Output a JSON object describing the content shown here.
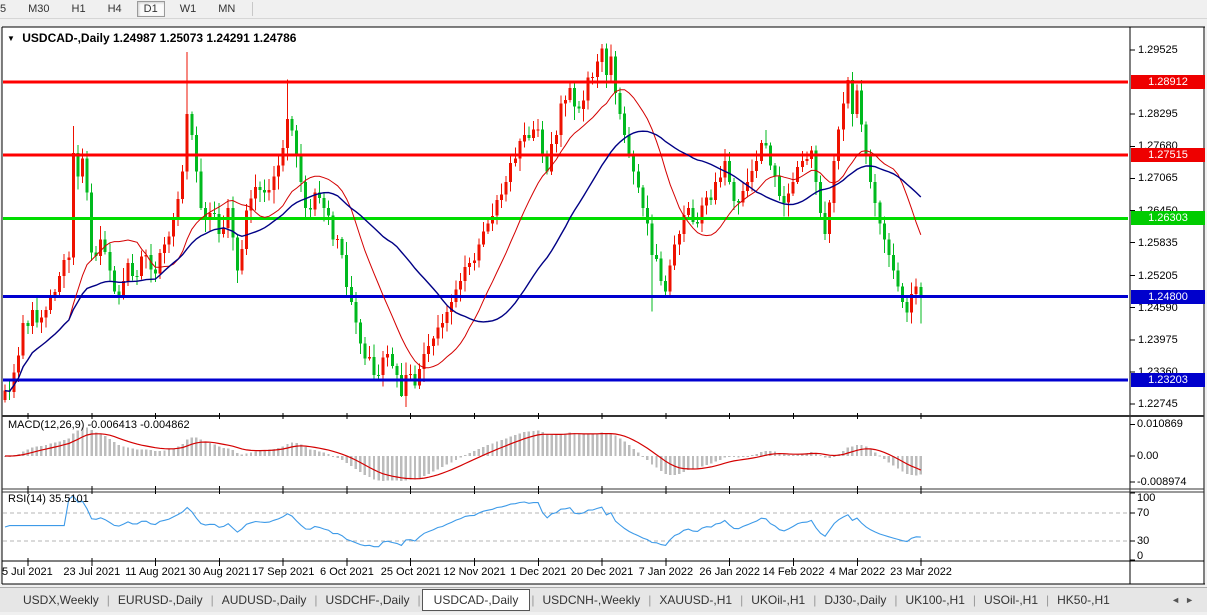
{
  "toolbar": {
    "timeframes": [
      {
        "label": "5",
        "partial": true,
        "active": false
      },
      {
        "label": "M30",
        "active": false
      },
      {
        "label": "H1",
        "active": false
      },
      {
        "label": "H4",
        "active": false
      },
      {
        "label": "D1",
        "active": true
      },
      {
        "label": "W1",
        "active": false
      },
      {
        "label": "MN",
        "active": false
      }
    ]
  },
  "chart": {
    "title_arrow": "▼",
    "symbol_title": "USDCAD-,Daily",
    "ohlc_text": "1.24987 1.25073 1.24291 1.24786"
  },
  "macd": {
    "label": "MACD(12,26,9) -0.006413 -0.004862"
  },
  "rsi": {
    "label": "RSI(14) 35.5101"
  },
  "tabs": {
    "items": [
      {
        "label": "USDX,Weekly",
        "active": false
      },
      {
        "label": "EURUSD-,Daily",
        "active": false
      },
      {
        "label": "AUDUSD-,Daily",
        "active": false
      },
      {
        "label": "USDCHF-,Daily",
        "active": false
      },
      {
        "label": "USDCAD-,Daily",
        "active": true
      },
      {
        "label": "USDCNH-,Weekly",
        "active": false
      },
      {
        "label": "XAUUSD-,H1",
        "active": false
      },
      {
        "label": "UKOil-,H1",
        "active": false
      },
      {
        "label": "DJ30-,Daily",
        "active": false
      },
      {
        "label": "UK100-,H1",
        "active": false
      },
      {
        "label": "USOil-,H1",
        "active": false
      },
      {
        "label": "HK50-,H1",
        "active": false
      }
    ],
    "scroll_left": "◄",
    "scroll_right": "►"
  },
  "chart_data": {
    "type": "candlestick",
    "symbol": "USDCAD-",
    "timeframe": "Daily",
    "current_ohlc": {
      "open": 1.24987,
      "high": 1.25073,
      "low": 1.24291,
      "close": 1.24786
    },
    "colors": {
      "bull": "#ee1100",
      "bear": "#00b91e",
      "ma_fast": "#d40000",
      "ma_slow": "#000085",
      "macd_hist": "#bcbcbc",
      "macd_signal": "#d40000",
      "rsi_line": "#3d9ae8",
      "rsi_levels": "#b5b5b5",
      "hline_red": "#ff0000",
      "hline_green": "#00dd00",
      "hline_blue": "#0000d0"
    },
    "price_axis_ticks": [
      "1.29525",
      "1.28295",
      "1.27680",
      "1.27065",
      "1.26450",
      "1.25835",
      "1.25205",
      "1.24590",
      "1.23975",
      "1.23360",
      "1.22745"
    ],
    "hlines": [
      {
        "price": 1.28912,
        "label": "1.28912",
        "color": "#ff0000",
        "badge": "#ee0000"
      },
      {
        "price": 1.27515,
        "label": "1.27515",
        "color": "#ff0000",
        "badge": "#ee0000"
      },
      {
        "price": 1.26303,
        "label": "1.26303",
        "color": "#00dd00",
        "badge": "#00cc00"
      },
      {
        "price": 1.248,
        "label": "1.24800",
        "color": "#0000d0",
        "badge": "#0000cc"
      },
      {
        "price": 1.23203,
        "label": "1.23203",
        "color": "#0000d0",
        "badge": "#0000cc"
      }
    ],
    "x_axis": {
      "labels": [
        "5 Jul 2021",
        "23 Jul 2021",
        "11 Aug 2021",
        "30 Aug 2021",
        "17 Sep 2021",
        "6 Oct 2021",
        "25 Oct 2021",
        "12 Nov 2021",
        "1 Dec 2021",
        "20 Dec 2021",
        "7 Jan 2022",
        "26 Jan 2022",
        "14 Feb 2022",
        "4 Mar 2022",
        "23 Mar 2022"
      ],
      "candles_per_tick": 14,
      "first_tick_candle": 5
    },
    "candles": {
      "count": 202,
      "close_anchors": [
        [
          0,
          1.23
        ],
        [
          2,
          1.2335
        ],
        [
          4,
          1.243
        ],
        [
          6,
          1.2455
        ],
        [
          8,
          1.244
        ],
        [
          10,
          1.248
        ],
        [
          12,
          1.252
        ],
        [
          14,
          1.2555
        ],
        [
          15,
          1.2755
        ],
        [
          16,
          1.271
        ],
        [
          17,
          1.2745
        ],
        [
          18,
          1.268
        ],
        [
          19,
          1.2565
        ],
        [
          21,
          1.259
        ],
        [
          23,
          1.253
        ],
        [
          25,
          1.248
        ],
        [
          27,
          1.2545
        ],
        [
          29,
          1.252
        ],
        [
          31,
          1.256
        ],
        [
          33,
          1.2525
        ],
        [
          35,
          1.258
        ],
        [
          37,
          1.263
        ],
        [
          39,
          1.272
        ],
        [
          40,
          1.283
        ],
        [
          41,
          1.279
        ],
        [
          43,
          1.265
        ],
        [
          45,
          1.264
        ],
        [
          47,
          1.26
        ],
        [
          49,
          1.265
        ],
        [
          51,
          1.253
        ],
        [
          53,
          1.2645
        ],
        [
          55,
          1.269
        ],
        [
          57,
          1.268
        ],
        [
          59,
          1.271
        ],
        [
          61,
          1.2765
        ],
        [
          62,
          1.282
        ],
        [
          64,
          1.275
        ],
        [
          66,
          1.265
        ],
        [
          68,
          1.268
        ],
        [
          70,
          1.265
        ],
        [
          72,
          1.259
        ],
        [
          74,
          1.256
        ],
        [
          76,
          1.247
        ],
        [
          78,
          1.239
        ],
        [
          80,
          1.2365
        ],
        [
          82,
          1.233
        ],
        [
          84,
          1.237
        ],
        [
          86,
          1.233
        ],
        [
          87,
          1.229
        ],
        [
          88,
          1.233
        ],
        [
          90,
          1.231
        ],
        [
          92,
          1.237
        ],
        [
          94,
          1.24
        ],
        [
          96,
          1.243
        ],
        [
          98,
          1.247
        ],
        [
          100,
          1.251
        ],
        [
          102,
          1.2545
        ],
        [
          104,
          1.258
        ],
        [
          106,
          1.262
        ],
        [
          108,
          1.2665
        ],
        [
          110,
          1.27
        ],
        [
          112,
          1.2745
        ],
        [
          114,
          1.279
        ],
        [
          116,
          1.28
        ],
        [
          117,
          1.28
        ],
        [
          119,
          1.272
        ],
        [
          121,
          1.279
        ],
        [
          122,
          1.285
        ],
        [
          124,
          1.288
        ],
        [
          126,
          1.284
        ],
        [
          128,
          1.29
        ],
        [
          130,
          1.293
        ],
        [
          131,
          1.2955
        ],
        [
          132,
          1.2905
        ],
        [
          133,
          1.294
        ],
        [
          134,
          1.287
        ],
        [
          136,
          1.279
        ],
        [
          138,
          1.272
        ],
        [
          140,
          1.265
        ],
        [
          142,
          1.256
        ],
        [
          144,
          1.251
        ],
        [
          145,
          1.249
        ],
        [
          146,
          1.254
        ],
        [
          148,
          1.26
        ],
        [
          150,
          1.265
        ],
        [
          152,
          1.262
        ],
        [
          154,
          1.267
        ],
        [
          156,
          1.27
        ],
        [
          158,
          1.274
        ],
        [
          159,
          1.27
        ],
        [
          161,
          1.266
        ],
        [
          163,
          1.27
        ],
        [
          165,
          1.274
        ],
        [
          167,
          1.277
        ],
        [
          169,
          1.271
        ],
        [
          171,
          1.266
        ],
        [
          173,
          1.27
        ],
        [
          175,
          1.274
        ],
        [
          177,
          1.276
        ],
        [
          178,
          1.27
        ],
        [
          179,
          1.264
        ],
        [
          180,
          1.26
        ],
        [
          181,
          1.266
        ],
        [
          182,
          1.274
        ],
        [
          183,
          1.28
        ],
        [
          184,
          1.285
        ],
        [
          185,
          1.2895
        ],
        [
          186,
          1.283
        ],
        [
          187,
          1.2875
        ],
        [
          188,
          1.281
        ],
        [
          189,
          1.275
        ],
        [
          190,
          1.27
        ],
        [
          191,
          1.266
        ],
        [
          192,
          1.262
        ],
        [
          193,
          1.259
        ],
        [
          194,
          1.256
        ],
        [
          195,
          1.253
        ],
        [
          196,
          1.25
        ],
        [
          197,
          1.247
        ],
        [
          198,
          1.245
        ],
        [
          199,
          1.2485
        ],
        [
          200,
          1.25
        ],
        [
          201,
          1.24786
        ]
      ],
      "wick_overrides": {
        "15": {
          "high": 1.2807
        },
        "40": {
          "high": 1.2949
        },
        "62": {
          "high": 1.2896
        },
        "87": {
          "low": 1.2288
        },
        "131": {
          "high": 1.2964
        },
        "142": {
          "low": 1.2452
        },
        "185": {
          "high": 1.2901
        },
        "198": {
          "low": 1.2432
        }
      },
      "last_candle": [
        1.24987,
        1.25073,
        1.24291,
        1.24786
      ]
    },
    "overlays": [
      {
        "type": "sma",
        "period": 15,
        "color": "#d40000"
      },
      {
        "type": "sma",
        "period": 34,
        "color": "#000085"
      }
    ],
    "indicators": {
      "macd": {
        "fast": 12,
        "slow": 26,
        "signal": 9,
        "current_macd": -0.006413,
        "current_signal": -0.004862,
        "axis_labels": [
          {
            "label": "0.010869",
            "value": 0.010869
          },
          {
            "label": "0.00",
            "value": 0
          },
          {
            "label": "-0.008974",
            "value": -0.008974
          }
        ]
      },
      "rsi": {
        "period": 14,
        "current": 35.5101,
        "levels": [
          70,
          30
        ],
        "axis_labels": [
          {
            "label": "100",
            "value": 100
          },
          {
            "label": "70",
            "value": 70
          },
          {
            "label": "30",
            "value": 30
          },
          {
            "label": "0",
            "value": 0
          }
        ]
      }
    }
  }
}
